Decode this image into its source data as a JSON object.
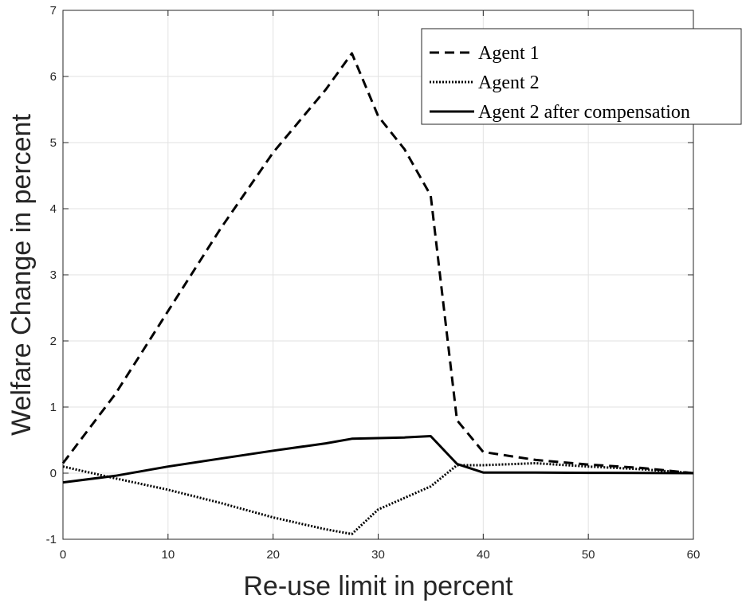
{
  "chart_data": {
    "type": "line",
    "xlabel": "Re-use limit in percent",
    "ylabel": "Welfare Change in percent",
    "xlim": [
      0,
      60
    ],
    "ylim": [
      -1,
      7
    ],
    "xticks": [
      0,
      10,
      20,
      30,
      40,
      50,
      60
    ],
    "yticks": [
      -1,
      0,
      1,
      2,
      3,
      4,
      5,
      6,
      7
    ],
    "grid": true,
    "legend_position": "top-right",
    "series": [
      {
        "name": "Agent 1",
        "style": "dashed",
        "color": "#000000",
        "x": [
          0,
          5,
          10,
          15,
          20,
          25,
          27.5,
          30,
          32.5,
          35,
          37.5,
          40,
          45,
          50,
          55,
          60
        ],
        "y": [
          0.15,
          1.2,
          2.45,
          3.7,
          4.85,
          5.8,
          6.35,
          5.4,
          4.9,
          4.2,
          0.8,
          0.32,
          0.2,
          0.13,
          0.08,
          0.0
        ]
      },
      {
        "name": "Agent 2",
        "style": "dotted",
        "color": "#000000",
        "x": [
          0,
          5,
          10,
          15,
          20,
          25,
          27.5,
          30,
          35,
          37.5,
          40,
          45,
          50,
          55,
          60
        ],
        "y": [
          0.1,
          -0.08,
          -0.25,
          -0.45,
          -0.67,
          -0.85,
          -0.92,
          -0.55,
          -0.2,
          0.12,
          0.12,
          0.15,
          0.1,
          0.06,
          0.0
        ]
      },
      {
        "name": "Agent 2 after compensation",
        "style": "solid",
        "color": "#000000",
        "x": [
          0,
          5,
          10,
          15,
          20,
          25,
          27.5,
          30,
          32.5,
          35,
          37.5,
          40,
          45,
          50,
          55,
          60
        ],
        "y": [
          -0.14,
          -0.04,
          0.1,
          0.22,
          0.34,
          0.45,
          0.52,
          0.53,
          0.54,
          0.56,
          0.14,
          0.01,
          0.01,
          0.005,
          0.002,
          0.0
        ]
      }
    ]
  }
}
